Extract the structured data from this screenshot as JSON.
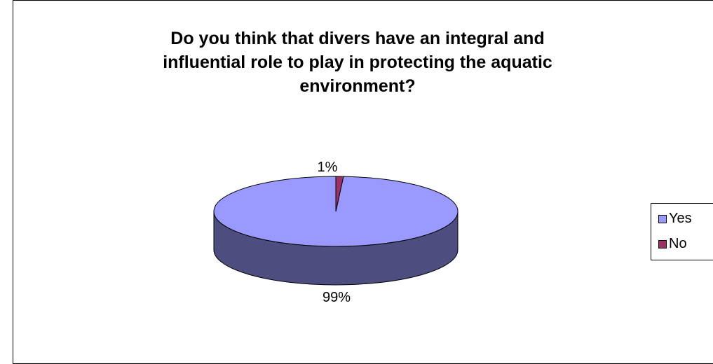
{
  "chart_data": {
    "type": "pie",
    "title_lines": [
      "Do you think that divers have an integral and",
      "influential role to play in protecting the aquatic",
      "environment?"
    ],
    "slices": [
      {
        "label": "Yes",
        "value": 99,
        "display": "99%",
        "color": "#9999FF",
        "side_color": "#4D4D80"
      },
      {
        "label": "No",
        "value": 1,
        "display": "1%",
        "color": "#993366",
        "side_color": "#4D1A33"
      }
    ],
    "legend_position": "right"
  }
}
